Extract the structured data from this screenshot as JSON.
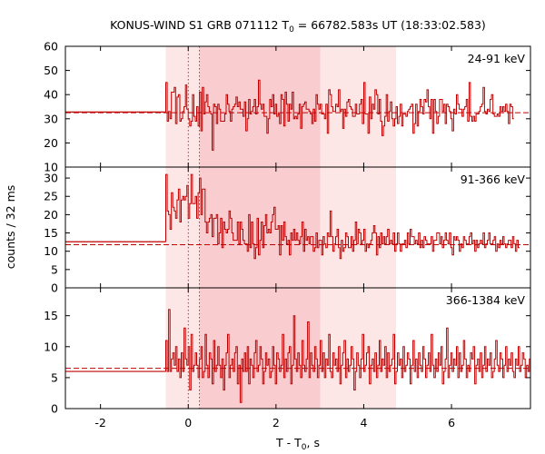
{
  "chart_data": {
    "type": "line",
    "title_prefix": "KONUS-WIND S1 GRB 071112 T",
    "title_sub": "0",
    "title_suffix": " = 66782.583s UT (18:33:02.583)",
    "xlabel_prefix": "T - T",
    "xlabel_sub": "0",
    "xlabel_suffix": ", s",
    "ylabel": "counts / 32 ms",
    "xlim": [
      -2.8,
      7.8
    ],
    "x_ticks": [
      -2,
      0,
      2,
      4,
      6
    ],
    "x_tick_labels": [
      "-2",
      "0",
      "2",
      "4",
      "6"
    ],
    "shaded_regions": [
      {
        "from": -0.512,
        "to": 4.736,
        "color": "#fde6e6"
      },
      {
        "from": 0.256,
        "to": 3.008,
        "color": "#f9cccf"
      }
    ],
    "vertical_markers": [
      0.0,
      0.256
    ],
    "line_color": "#c00000",
    "panels": [
      {
        "label": "24-91 keV",
        "ylim": [
          10,
          60
        ],
        "y_ticks": [
          10,
          20,
          30,
          40,
          50,
          60
        ],
        "y_tick_labels": [
          "10",
          "20",
          "30",
          "40",
          "50",
          "60"
        ],
        "background_level": 32.5,
        "pre_level": 32.8,
        "bin_width": 0.032,
        "start": -0.512,
        "values": [
          45,
          29,
          33,
          30,
          41,
          41,
          43,
          28,
          39,
          40,
          29,
          30,
          33,
          35,
          44,
          34,
          30,
          27,
          29,
          40,
          31,
          29,
          35,
          27,
          41,
          25,
          43,
          32,
          37,
          40,
          35,
          33,
          32,
          17,
          36,
          35,
          28,
          36,
          34,
          29,
          29,
          29,
          32,
          40,
          36,
          33,
          29,
          34,
          35,
          36,
          39,
          35,
          37,
          34,
          34,
          31,
          37,
          25,
          30,
          38,
          32,
          33,
          35,
          38,
          32,
          35,
          46,
          36,
          34,
          36,
          31,
          31,
          24,
          30,
          38,
          35,
          40,
          32,
          36,
          31,
          32,
          28,
          40,
          38,
          27,
          41,
          36,
          29,
          36,
          34,
          41,
          30,
          31,
          30,
          32,
          36,
          26,
          35,
          36,
          37,
          34,
          34,
          33,
          32,
          28,
          34,
          29,
          40,
          36,
          34,
          36,
          32,
          32,
          30,
          36,
          24,
          42,
          40,
          35,
          33,
          33,
          36,
          35,
          42,
          33,
          34,
          26,
          34,
          31,
          37,
          38,
          35,
          34,
          31,
          31,
          36,
          32,
          32,
          36,
          38,
          28,
          45,
          32,
          32,
          24,
          39,
          30,
          36,
          34,
          42,
          40,
          32,
          38,
          29,
          23,
          27,
          31,
          40,
          29,
          33,
          37,
          30,
          27,
          30,
          35,
          28,
          31,
          36,
          27,
          32,
          32,
          31,
          33,
          34,
          35,
          36,
          24,
          28,
          36,
          27,
          33,
          38,
          35,
          32,
          38,
          37,
          42,
          35,
          30,
          38,
          24,
          38,
          33,
          28,
          31,
          38,
          38,
          33,
          36,
          28,
          36,
          35,
          33,
          30,
          25,
          34,
          32,
          40,
          36,
          34,
          34,
          31,
          34,
          35,
          38,
          29,
          45,
          31,
          29,
          31,
          29,
          32,
          32,
          33,
          35,
          36,
          43,
          33,
          32,
          34,
          33,
          38,
          40,
          32,
          31,
          31,
          32,
          31,
          35,
          33,
          35,
          33,
          36,
          33,
          28,
          36,
          35,
          30
        ]
      },
      {
        "label": "91-366 keV",
        "ylim": [
          0,
          33
        ],
        "y_ticks": [
          0,
          5,
          10,
          15,
          20,
          25,
          30
        ],
        "y_tick_labels": [
          "0",
          "5",
          "10",
          "15",
          "20",
          "25",
          "30"
        ],
        "background_level": 11.8,
        "pre_level": 12.6,
        "bin_width": 0.032,
        "start": -0.512,
        "values": [
          31,
          21,
          20,
          16,
          26,
          22,
          21,
          19,
          24,
          27,
          18,
          24,
          25,
          24,
          25,
          28,
          19,
          23,
          31,
          23,
          23,
          25,
          19,
          26,
          30,
          20,
          27,
          27,
          18,
          15,
          18,
          19,
          20,
          14,
          19,
          19,
          20,
          12,
          15,
          19,
          11,
          18,
          16,
          15,
          16,
          21,
          19,
          15,
          13,
          13,
          13,
          18,
          12,
          18,
          16,
          13,
          12,
          12,
          10,
          20,
          11,
          18,
          12,
          8,
          11,
          19,
          9,
          13,
          18,
          11,
          17,
          20,
          15,
          16,
          15,
          18,
          20,
          22,
          16,
          16,
          17,
          9,
          17,
          13,
          18,
          14,
          12,
          13,
          9,
          15,
          13,
          16,
          13,
          15,
          13,
          12,
          14,
          18,
          10,
          16,
          13,
          14,
          12,
          14,
          14,
          10,
          11,
          15,
          11,
          13,
          13,
          9,
          14,
          12,
          11,
          15,
          14,
          21,
          14,
          10,
          12,
          14,
          16,
          11,
          8,
          13,
          10,
          11,
          15,
          14,
          11,
          11,
          14,
          10,
          13,
          18,
          12,
          16,
          15,
          12,
          13,
          16,
          10,
          12,
          11,
          12,
          13,
          15,
          17,
          15,
          9,
          14,
          11,
          15,
          12,
          14,
          12,
          14,
          16,
          12,
          13,
          12,
          15,
          10,
          12,
          15,
          12,
          10,
          12,
          12,
          13,
          11,
          15,
          12,
          16,
          14,
          14,
          12,
          13,
          12,
          15,
          11,
          13,
          11,
          14,
          13,
          12,
          12,
          12,
          14,
          10,
          13,
          13,
          15,
          15,
          12,
          14,
          11,
          13,
          15,
          13,
          12,
          15,
          11,
          9,
          14,
          13,
          14,
          13,
          10,
          12,
          11,
          14,
          13,
          12,
          12,
          14,
          15,
          12,
          13,
          10,
          13,
          11,
          12,
          13,
          12,
          15,
          11,
          12,
          13,
          15,
          12,
          12,
          13,
          14,
          10,
          12,
          11,
          13,
          12,
          14,
          12,
          11,
          12,
          13,
          13,
          11,
          14,
          12,
          10,
          13,
          11
        ]
      },
      {
        "label": "366-1384 keV",
        "ylim": [
          0,
          19.5
        ],
        "y_ticks": [
          0,
          5,
          10,
          15
        ],
        "y_tick_labels": [
          "0",
          "5",
          "10",
          "15"
        ],
        "background_level": 6.5,
        "pre_level": 6.0,
        "bin_width": 0.032,
        "start": -0.512,
        "values": [
          11,
          6,
          16,
          6,
          8,
          9,
          7,
          10,
          6,
          8,
          5,
          9,
          6,
          13,
          8,
          7,
          10,
          3,
          12,
          6,
          7,
          9,
          7,
          5,
          8,
          10,
          5,
          6,
          12,
          7,
          5,
          9,
          8,
          4,
          11,
          6,
          7,
          10,
          7,
          5,
          8,
          3,
          7,
          9,
          12,
          5,
          7,
          8,
          6,
          9,
          10,
          4,
          7,
          1,
          8,
          6,
          9,
          6,
          10,
          4,
          8,
          7,
          5,
          9,
          11,
          6,
          7,
          10,
          8,
          4,
          6,
          9,
          7,
          8,
          5,
          6,
          10,
          7,
          4,
          9,
          8,
          6,
          7,
          12,
          5,
          8,
          6,
          9,
          10,
          4,
          7,
          15,
          8,
          6,
          9,
          7,
          5,
          11,
          7,
          6,
          8,
          14,
          5,
          9,
          7,
          6,
          10,
          8,
          5,
          7,
          11,
          6,
          9,
          5,
          8,
          7,
          12,
          6,
          5,
          9,
          7,
          8,
          6,
          10,
          4,
          7,
          9,
          11,
          5,
          8,
          6,
          7,
          10,
          8,
          3,
          6,
          9,
          7,
          5,
          8,
          12,
          6,
          7,
          9,
          10,
          4,
          7,
          8,
          6,
          9,
          5,
          7,
          11,
          6,
          8,
          7,
          10,
          5,
          9,
          6,
          7,
          8,
          12,
          4,
          6,
          9,
          7,
          8,
          5,
          10,
          6,
          7,
          9,
          8,
          4,
          7,
          11,
          6,
          8,
          5,
          9,
          7,
          6,
          10,
          8,
          5,
          7,
          9,
          6,
          12,
          7,
          5,
          8,
          6,
          9,
          7,
          10,
          4,
          6,
          8,
          13,
          5,
          7,
          9,
          6,
          8,
          7,
          10,
          5,
          9,
          6,
          7,
          11,
          8,
          5,
          7,
          6,
          9,
          8,
          10,
          4,
          7,
          8,
          6,
          9,
          5,
          7,
          10,
          6,
          8,
          7,
          9,
          5,
          6,
          8,
          11,
          7,
          6,
          9,
          8,
          5,
          7,
          10,
          6,
          8,
          7,
          9,
          6,
          5,
          8,
          7,
          10,
          6,
          7,
          9,
          8,
          5,
          7,
          6,
          8
        ]
      }
    ]
  }
}
